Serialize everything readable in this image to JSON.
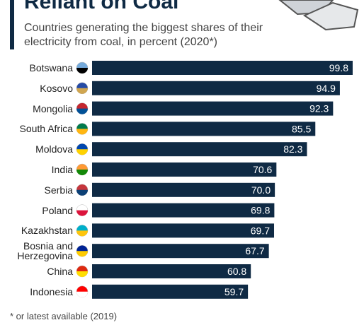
{
  "chart_data": {
    "type": "bar",
    "orientation": "horizontal",
    "title": "Reliant on Coal",
    "subtitle": "Countries generating the biggest shares of their electricity from coal, in percent (2020*)",
    "footnote": "* or latest available (2019)",
    "categories": [
      "Botswana",
      "Kosovo",
      "Mongolia",
      "South Africa",
      "Moldova",
      "India",
      "Serbia",
      "Poland",
      "Kazakhstan",
      "Bosnia and Herzegovina",
      "China",
      "Indonesia"
    ],
    "values": [
      99.8,
      94.9,
      92.3,
      85.5,
      82.3,
      70.6,
      70,
      69.8,
      69.7,
      67.7,
      60.8,
      59.7
    ],
    "value_labels": [
      "99.8",
      "94.9",
      "92.3",
      "85.5",
      "82.3",
      "70.6",
      "70.0",
      "69.8",
      "69.7",
      "67.7",
      "60.8",
      "59.7"
    ],
    "color": "#0f2a44"
  }
}
